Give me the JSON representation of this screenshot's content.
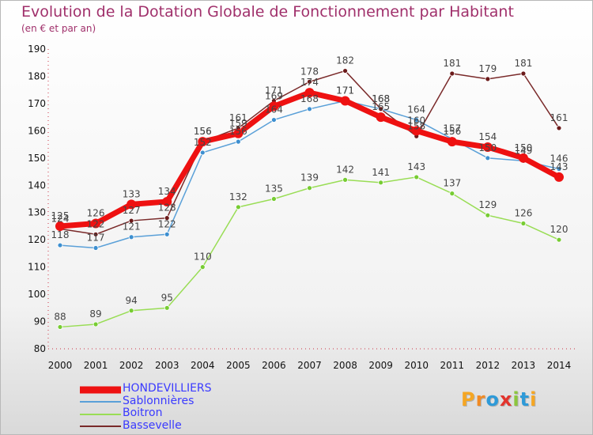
{
  "header": {
    "title": "Evolution de la Dotation Globale de Fonctionnement par Habitant",
    "subtitle": "(en € et par an)"
  },
  "logo": {
    "text": "Proxiti",
    "letters": [
      {
        "ch": "P",
        "color": "#f5a623"
      },
      {
        "ch": "r",
        "color": "#f08a24"
      },
      {
        "ch": "o",
        "color": "#2e9ad8"
      },
      {
        "ch": "x",
        "color": "#e2342d"
      },
      {
        "ch": "i",
        "color": "#8cc63e"
      },
      {
        "ch": "t",
        "color": "#2e9ad8"
      },
      {
        "ch": "i",
        "color": "#f5a623"
      }
    ]
  },
  "chart_data": {
    "type": "line",
    "title": "Evolution de la Dotation Globale de Fonctionnement par Habitant",
    "subtitle": "(en € et par an)",
    "x": [
      2000,
      2001,
      2002,
      2003,
      2004,
      2005,
      2006,
      2007,
      2008,
      2009,
      2010,
      2011,
      2012,
      2013,
      2014
    ],
    "ylim": [
      80,
      190
    ],
    "yticks": [
      80,
      90,
      100,
      110,
      120,
      130,
      140,
      150,
      160,
      170,
      180,
      190
    ],
    "grid": false,
    "legend_position": "bottom-left",
    "series": [
      {
        "name": "Boitron",
        "color": "#99dd55",
        "marker": "#77cc33",
        "width": 1.5,
        "radius": 3,
        "values": [
          88,
          89,
          94,
          95,
          110,
          132,
          135,
          139,
          142,
          141,
          143,
          137,
          129,
          126,
          120
        ],
        "labels": [
          "88",
          "89",
          "94",
          "95",
          "110",
          "132",
          "135",
          "139",
          "142",
          "141",
          "143",
          "137",
          "129",
          "126",
          "120"
        ]
      },
      {
        "name": "Sablonnières",
        "color": "#5aa0d8",
        "marker": "#3d8fd0",
        "width": 1.5,
        "radius": 3,
        "values": [
          118,
          117,
          121,
          122,
          152,
          156,
          164,
          168,
          171,
          168,
          164,
          157,
          150,
          149,
          146
        ],
        "labels": [
          "118",
          "117",
          "121",
          "122",
          "152",
          "156",
          "164",
          "168",
          "171",
          "168",
          "164",
          "157",
          "150",
          "149",
          "146"
        ]
      },
      {
        "name": "Bassevelle",
        "color": "#7a2a2a",
        "marker": "#6b1a1a",
        "width": 1.5,
        "radius": 3,
        "values": [
          124,
          122,
          127,
          128,
          156,
          161,
          171,
          178,
          182,
          168,
          158,
          181,
          179,
          181,
          161
        ],
        "labels": [
          "124",
          "122",
          "127",
          "128",
          "156",
          "161",
          "171",
          "178",
          "182",
          "168",
          "158",
          "181",
          "179",
          "181",
          "161"
        ]
      },
      {
        "name": "HONDEVILLIERS",
        "color": "#ee1111",
        "marker": "#ee1111",
        "width": 7,
        "radius": 6,
        "values": [
          125,
          126,
          133,
          134,
          156,
          159,
          169,
          174,
          171,
          165,
          160,
          156,
          154,
          150,
          143
        ],
        "labels": [
          "125",
          "126",
          "133",
          "134",
          "156",
          "159",
          "169",
          "174",
          "171",
          "165",
          "160",
          "156",
          "154",
          "150",
          "143"
        ]
      }
    ]
  },
  "legend": [
    {
      "name": "HONDEVILLIERS",
      "color": "#ee1111",
      "thickness": 9
    },
    {
      "name": "Sablonnières",
      "color": "#5aa0d8",
      "thickness": 2
    },
    {
      "name": "Boitron",
      "color": "#99dd55",
      "thickness": 2
    },
    {
      "name": "Bassevelle",
      "color": "#7a2a2a",
      "thickness": 2
    }
  ]
}
